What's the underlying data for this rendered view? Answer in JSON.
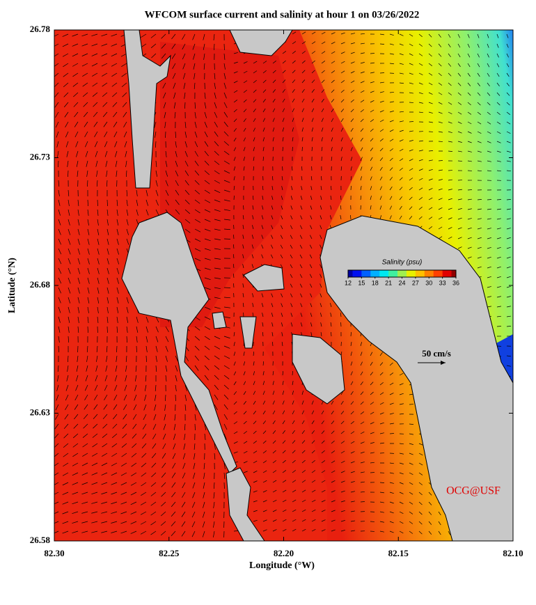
{
  "chart_data": {
    "type": "map",
    "title": "WFCOM surface current and salinity at hour 1 on 03/26/2022",
    "x_label": "Longitude (°W)",
    "y_label": "Latitude (°N)",
    "xlim": [
      82.3,
      82.1
    ],
    "xticks": [
      {
        "value": 82.3,
        "label": "82.30"
      },
      82.25,
      {
        "value": 82.2,
        "label": "82.20"
      },
      82.15,
      {
        "value": 82.1,
        "label": "82.10"
      }
    ],
    "ylim": [
      26.58,
      26.78
    ],
    "yticks": [
      26.58,
      26.63,
      26.68,
      26.73,
      26.78
    ],
    "colorbar": {
      "label": "Salinity (psu)",
      "range": [
        12,
        36
      ],
      "ticks": [
        12,
        15,
        18,
        21,
        24,
        27,
        30,
        33,
        36
      ]
    },
    "scale_label": "50 cm/s",
    "credit": "OCG@USF"
  }
}
